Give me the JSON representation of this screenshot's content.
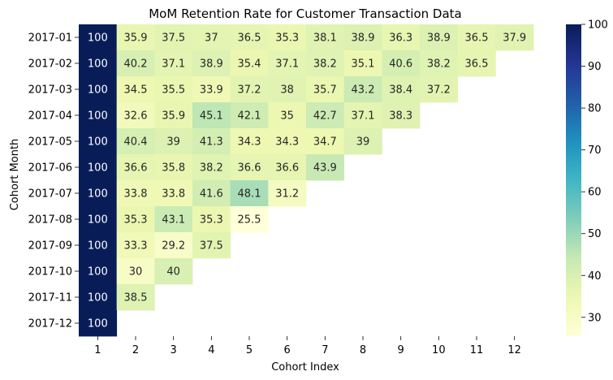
{
  "chart_data": {
    "type": "heatmap",
    "title": "MoM Retention Rate for Customer Transaction Data",
    "xlabel": "Cohort Index",
    "ylabel": "Cohort Month",
    "x_categories": [
      "1",
      "2",
      "3",
      "4",
      "5",
      "6",
      "7",
      "8",
      "9",
      "10",
      "11",
      "12"
    ],
    "y_categories": [
      "2017-01",
      "2017-02",
      "2017-03",
      "2017-04",
      "2017-05",
      "2017-06",
      "2017-07",
      "2017-08",
      "2017-09",
      "2017-10",
      "2017-11",
      "2017-12"
    ],
    "values": [
      [
        100,
        35.9,
        37.5,
        37,
        36.5,
        35.3,
        38.1,
        38.9,
        36.3,
        38.9,
        36.5,
        37.9
      ],
      [
        100,
        40.2,
        37.1,
        38.9,
        35.4,
        37.1,
        38.2,
        35.1,
        40.6,
        38.2,
        36.5
      ],
      [
        100,
        34.5,
        35.5,
        33.9,
        37.2,
        38,
        35.7,
        43.2,
        38.4,
        37.2
      ],
      [
        100,
        32.6,
        35.9,
        45.1,
        42.1,
        35,
        42.7,
        37.1,
        38.3
      ],
      [
        100,
        40.4,
        39,
        41.3,
        34.3,
        34.3,
        34.7,
        39
      ],
      [
        100,
        36.6,
        35.8,
        38.2,
        36.6,
        36.6,
        43.9
      ],
      [
        100,
        33.8,
        33.8,
        41.6,
        48.1,
        31.2
      ],
      [
        100,
        35.3,
        43.1,
        35.3,
        25.5
      ],
      [
        100,
        33.3,
        29.2,
        37.5
      ],
      [
        100,
        30,
        40
      ],
      [
        100,
        38.5
      ],
      [
        100
      ]
    ],
    "colormap": "YlGnBu",
    "vmin": 25.5,
    "vmax": 100,
    "colorbar_ticks": [
      30,
      40,
      50,
      60,
      70,
      80,
      90,
      100
    ]
  }
}
